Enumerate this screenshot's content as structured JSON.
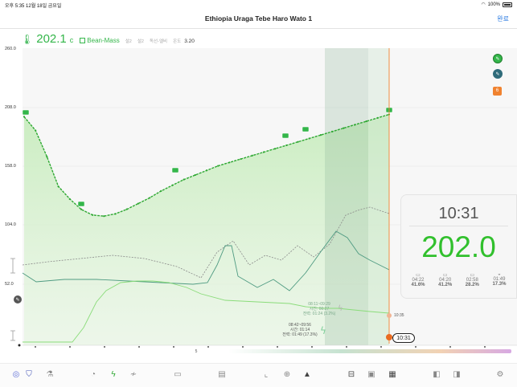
{
  "status": {
    "time_date": "오후 5:35   12월 18일 금요일",
    "battery": "100%"
  },
  "nav": {
    "title": "Ethiopia Uraga Tebe Haro Wato 1",
    "done": "완료"
  },
  "readout": {
    "temp": "202.1",
    "unit": "c",
    "bean_mass": "Bean-Mass",
    "small1": "설2",
    "small2": "설2",
    "small3": "독선-엘비",
    "small4": "온도",
    "value": "3.20"
  },
  "y_ticks": [
    "260.0",
    "208.0",
    "158.0",
    "104.0",
    "52.0"
  ],
  "chart_data": {
    "type": "line",
    "ylim": [
      0,
      260
    ],
    "series": [
      {
        "name": "Bean Temp",
        "values": [
          200,
          188,
          165,
          139,
          128,
          119,
          114,
          113,
          115,
          119,
          124,
          129,
          135,
          140,
          145,
          149,
          153,
          157,
          160,
          163,
          166,
          169,
          172,
          175,
          178,
          181,
          184,
          187,
          190,
          193,
          196,
          199,
          202
        ]
      }
    ]
  },
  "events": [
    {
      "label": "08:11~09:29\n시간: 00:27\n전력: 01:24 (3.2%)"
    },
    {
      "label": "08:42~09:56\n시간: 01:14\n전력: 01:49 (17.3%)"
    }
  ],
  "end_marker": "10:35",
  "time_pill": "10:31",
  "x_marker": "5",
  "panel": {
    "time": "10:31",
    "temp": "202.0",
    "phases": [
      {
        "icon": "▭",
        "time": "04:22",
        "pct": "41.6%"
      },
      {
        "icon": "▭",
        "time": "04:20",
        "pct": "41.2%"
      },
      {
        "icon": "▭",
        "time": "02:58",
        "pct": "28.2%"
      },
      {
        "icon": "◒",
        "time": "01:49",
        "pct": "17.3%"
      }
    ]
  },
  "badge": "6",
  "colors": {
    "bean_green": "#34b64a",
    "fill_green": "#bfe8b4",
    "ror": "#4f9b82",
    "fan": "#9a9a9a",
    "orange": "#f0822f",
    "blue_link": "#2a7ae2"
  }
}
